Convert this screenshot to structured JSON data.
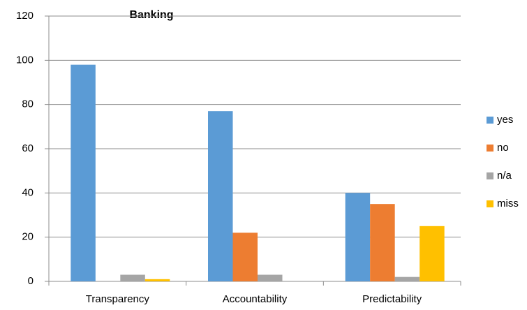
{
  "chart_data": {
    "type": "bar",
    "title": "Banking",
    "categories": [
      "Transparency",
      "Accountability",
      "Predictability"
    ],
    "series": [
      {
        "name": "yes",
        "color": "#5b9bd5",
        "values": [
          98,
          77,
          40
        ]
      },
      {
        "name": "no",
        "color": "#ed7d31",
        "values": [
          0,
          22,
          35
        ]
      },
      {
        "name": "n/a",
        "color": "#a5a5a5",
        "values": [
          3,
          3,
          2
        ]
      },
      {
        "name": "miss",
        "color": "#ffc000",
        "values": [
          1,
          0,
          25
        ]
      }
    ],
    "ylim": [
      0,
      120
    ],
    "yticks": [
      0,
      20,
      40,
      60,
      80,
      100,
      120
    ],
    "grid": true,
    "legend": "right"
  }
}
